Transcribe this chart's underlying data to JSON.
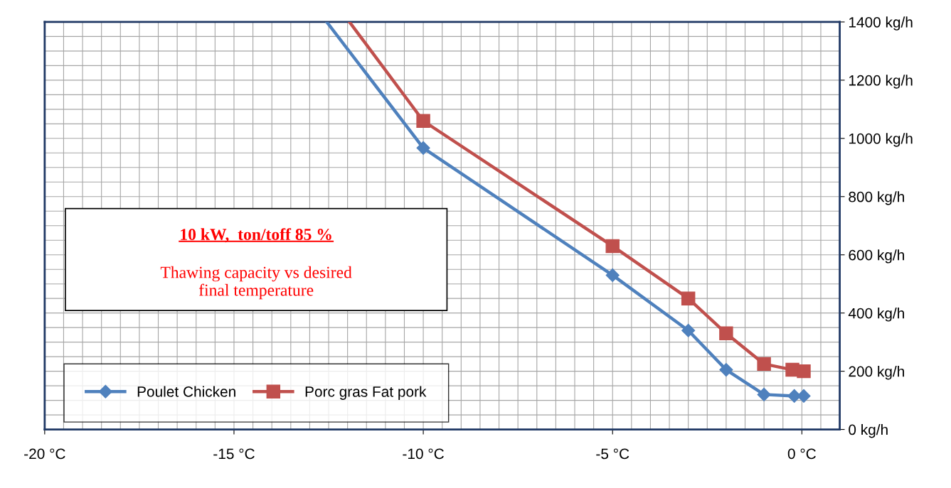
{
  "chart_data": {
    "type": "line",
    "title": "10 kW,  ton/toff 85 %",
    "subtitle": "Thawing capacity vs desired\nfinal temperature",
    "series": [
      {
        "name": "Poulet Chicken",
        "color": "#4f81bd",
        "marker": "diamond",
        "x": [
          -12.55,
          -10,
          -5,
          -3,
          -2,
          -1,
          -0.2,
          0.05
        ],
        "values": [
          1400,
          967,
          530,
          340,
          205,
          120,
          115,
          115
        ]
      },
      {
        "name": "Porc gras Fat pork",
        "color": "#c0504d",
        "marker": "square",
        "x": [
          -11.95,
          -10,
          -5,
          -3,
          -2,
          -1,
          -0.25,
          0.05
        ],
        "values": [
          1400,
          1060,
          630,
          450,
          330,
          225,
          205,
          200
        ]
      }
    ],
    "xlim": [
      -20,
      1.0
    ],
    "ylim": [
      0,
      1400
    ],
    "xticks": [
      {
        "value": -20,
        "label": "-20 °C"
      },
      {
        "value": -15,
        "label": "-15 °C"
      },
      {
        "value": -10,
        "label": "-10 °C"
      },
      {
        "value": -5,
        "label": "-5 °C"
      },
      {
        "value": 0,
        "label": "0 °C"
      }
    ],
    "yticks": [
      {
        "value": 0,
        "label": "0 kg/h"
      },
      {
        "value": 200,
        "label": "200 kg/h"
      },
      {
        "value": 400,
        "label": "400 kg/h"
      },
      {
        "value": 600,
        "label": "600 kg/h"
      },
      {
        "value": 800,
        "label": "800 kg/h"
      },
      {
        "value": 1000,
        "label": "1000 kg/h"
      },
      {
        "value": 1200,
        "label": "1200 kg/h"
      },
      {
        "value": 1400,
        "label": "1400 kg/h"
      }
    ],
    "grid": true,
    "legend": "bottom left",
    "line_style": "solid"
  }
}
